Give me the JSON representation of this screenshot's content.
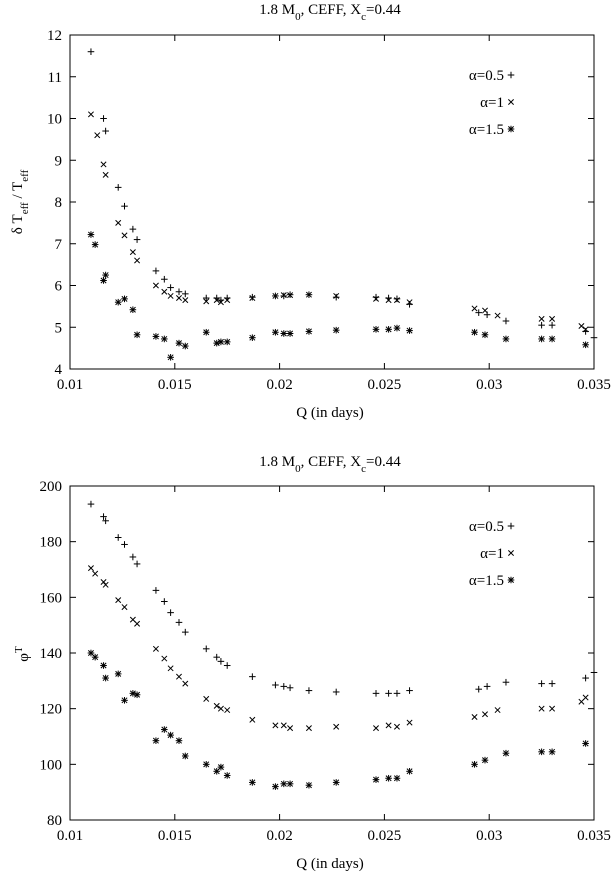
{
  "chart_data": [
    {
      "type": "scatter",
      "title": {
        "prefix": "1.8 M",
        "sub": "0",
        "suffix": ", CEFF, X",
        "sub2": "c",
        "tail": "=0.44"
      },
      "xlabel": "Q (in days)",
      "ylabel": {
        "a": "δ T",
        "sub_a": "eff",
        "b": " / T",
        "sub_b": "eff"
      },
      "xlim": [
        0.01,
        0.035
      ],
      "ylim": [
        4,
        12
      ],
      "xticks": [
        "0.01",
        "0.015",
        "0.02",
        "0.025",
        "0.03",
        "0.035"
      ],
      "yticks": [
        "4",
        "5",
        "6",
        "7",
        "8",
        "9",
        "10",
        "11",
        "12"
      ],
      "legend_position": "top-right",
      "series": [
        {
          "name": "α=0.5",
          "marker": "plus",
          "points": [
            [
              0.011,
              11.6
            ],
            [
              0.0116,
              10.0
            ],
            [
              0.0117,
              9.7
            ],
            [
              0.0123,
              8.35
            ],
            [
              0.0126,
              7.9
            ],
            [
              0.013,
              7.35
            ],
            [
              0.0132,
              7.1
            ],
            [
              0.0141,
              6.35
            ],
            [
              0.0145,
              6.15
            ],
            [
              0.0148,
              5.95
            ],
            [
              0.0152,
              5.85
            ],
            [
              0.0155,
              5.8
            ],
            [
              0.0165,
              5.7
            ],
            [
              0.017,
              5.7
            ],
            [
              0.0172,
              5.65
            ],
            [
              0.0175,
              5.7
            ],
            [
              0.0187,
              5.72
            ],
            [
              0.0198,
              5.75
            ],
            [
              0.0202,
              5.75
            ],
            [
              0.0205,
              5.78
            ],
            [
              0.0214,
              5.78
            ],
            [
              0.0227,
              5.72
            ],
            [
              0.0246,
              5.72
            ],
            [
              0.0252,
              5.7
            ],
            [
              0.0256,
              5.68
            ],
            [
              0.0262,
              5.55
            ],
            [
              0.0295,
              5.35
            ],
            [
              0.0299,
              5.3
            ],
            [
              0.0308,
              5.15
            ],
            [
              0.0325,
              5.05
            ],
            [
              0.033,
              5.05
            ],
            [
              0.0346,
              4.9
            ],
            [
              0.035,
              4.75
            ]
          ]
        },
        {
          "name": "α=1",
          "marker": "cross",
          "points": [
            [
              0.011,
              10.1
            ],
            [
              0.0113,
              9.6
            ],
            [
              0.0116,
              8.9
            ],
            [
              0.0117,
              8.65
            ],
            [
              0.0123,
              7.5
            ],
            [
              0.0126,
              7.2
            ],
            [
              0.013,
              6.8
            ],
            [
              0.0132,
              6.6
            ],
            [
              0.0141,
              6.0
            ],
            [
              0.0145,
              5.85
            ],
            [
              0.0148,
              5.75
            ],
            [
              0.0152,
              5.7
            ],
            [
              0.0155,
              5.65
            ],
            [
              0.0165,
              5.62
            ],
            [
              0.017,
              5.65
            ],
            [
              0.0172,
              5.6
            ],
            [
              0.0175,
              5.65
            ],
            [
              0.0187,
              5.7
            ],
            [
              0.0198,
              5.75
            ],
            [
              0.0202,
              5.77
            ],
            [
              0.0205,
              5.77
            ],
            [
              0.0214,
              5.78
            ],
            [
              0.0227,
              5.75
            ],
            [
              0.0246,
              5.68
            ],
            [
              0.0252,
              5.65
            ],
            [
              0.0256,
              5.65
            ],
            [
              0.0262,
              5.6
            ],
            [
              0.0293,
              5.45
            ],
            [
              0.0298,
              5.4
            ],
            [
              0.0304,
              5.28
            ],
            [
              0.0325,
              5.2
            ],
            [
              0.033,
              5.2
            ],
            [
              0.0344,
              5.03
            ],
            [
              0.0346,
              4.95
            ]
          ]
        },
        {
          "name": "α=1.5",
          "marker": "star",
          "points": [
            [
              0.011,
              7.22
            ],
            [
              0.0112,
              6.98
            ],
            [
              0.0116,
              6.12
            ],
            [
              0.0117,
              6.25
            ],
            [
              0.0123,
              5.6
            ],
            [
              0.0126,
              5.68
            ],
            [
              0.013,
              5.42
            ],
            [
              0.0132,
              4.82
            ],
            [
              0.0141,
              4.78
            ],
            [
              0.0145,
              4.72
            ],
            [
              0.0148,
              4.28
            ],
            [
              0.0152,
              4.62
            ],
            [
              0.0155,
              4.55
            ],
            [
              0.0165,
              4.88
            ],
            [
              0.017,
              4.62
            ],
            [
              0.0172,
              4.65
            ],
            [
              0.0175,
              4.65
            ],
            [
              0.0187,
              4.75
            ],
            [
              0.0198,
              4.88
            ],
            [
              0.0202,
              4.85
            ],
            [
              0.0205,
              4.85
            ],
            [
              0.0214,
              4.9
            ],
            [
              0.0227,
              4.93
            ],
            [
              0.0246,
              4.95
            ],
            [
              0.0252,
              4.95
            ],
            [
              0.0256,
              4.98
            ],
            [
              0.0262,
              4.92
            ],
            [
              0.0293,
              4.88
            ],
            [
              0.0298,
              4.82
            ],
            [
              0.0308,
              4.72
            ],
            [
              0.0325,
              4.72
            ],
            [
              0.033,
              4.72
            ],
            [
              0.0346,
              4.58
            ]
          ]
        }
      ]
    },
    {
      "type": "scatter",
      "title": {
        "prefix": "1.8 M",
        "sub": "0",
        "suffix": ", CEFF, X",
        "sub2": "c",
        "tail": "=0.44"
      },
      "xlabel": "Q (in days)",
      "ylabel": {
        "a": "φ",
        "sup": "T"
      },
      "xlim": [
        0.01,
        0.035
      ],
      "ylim": [
        80,
        200
      ],
      "xticks": [
        "0.01",
        "0.015",
        "0.02",
        "0.025",
        "0.03",
        "0.035"
      ],
      "yticks": [
        "80",
        "100",
        "120",
        "140",
        "160",
        "180",
        "200"
      ],
      "legend_position": "top-right",
      "series": [
        {
          "name": "α=0.5",
          "marker": "plus",
          "points": [
            [
              0.011,
              193.5
            ],
            [
              0.0116,
              189
            ],
            [
              0.0117,
              187.5
            ],
            [
              0.0123,
              181.5
            ],
            [
              0.0126,
              179
            ],
            [
              0.013,
              174.5
            ],
            [
              0.0132,
              172
            ],
            [
              0.0141,
              162.5
            ],
            [
              0.0145,
              158.5
            ],
            [
              0.0148,
              154.5
            ],
            [
              0.0152,
              151
            ],
            [
              0.0155,
              147.5
            ],
            [
              0.0165,
              141.5
            ],
            [
              0.017,
              138.5
            ],
            [
              0.0172,
              137
            ],
            [
              0.0175,
              135.5
            ],
            [
              0.0187,
              131.5
            ],
            [
              0.0198,
              128.5
            ],
            [
              0.0202,
              128
            ],
            [
              0.0205,
              127.5
            ],
            [
              0.0214,
              126.5
            ],
            [
              0.0227,
              126
            ],
            [
              0.0246,
              125.5
            ],
            [
              0.0252,
              125.5
            ],
            [
              0.0256,
              125.5
            ],
            [
              0.0262,
              126.5
            ],
            [
              0.0295,
              127
            ],
            [
              0.0299,
              128
            ],
            [
              0.0308,
              129.5
            ],
            [
              0.0325,
              129
            ],
            [
              0.033,
              129
            ],
            [
              0.0346,
              131
            ],
            [
              0.035,
              133
            ]
          ]
        },
        {
          "name": "α=1",
          "marker": "cross",
          "points": [
            [
              0.011,
              170.5
            ],
            [
              0.0112,
              168.5
            ],
            [
              0.0116,
              165.5
            ],
            [
              0.0117,
              164.5
            ],
            [
              0.0123,
              159
            ],
            [
              0.0126,
              156.5
            ],
            [
              0.013,
              152
            ],
            [
              0.0132,
              150.5
            ],
            [
              0.0141,
              141.5
            ],
            [
              0.0145,
              138
            ],
            [
              0.0148,
              134.5
            ],
            [
              0.0152,
              131.5
            ],
            [
              0.0155,
              129
            ],
            [
              0.0165,
              123.5
            ],
            [
              0.017,
              121
            ],
            [
              0.0172,
              120
            ],
            [
              0.0175,
              119.5
            ],
            [
              0.0187,
              116
            ],
            [
              0.0198,
              114
            ],
            [
              0.0202,
              114
            ],
            [
              0.0205,
              113
            ],
            [
              0.0214,
              113
            ],
            [
              0.0227,
              113.5
            ],
            [
              0.0246,
              113
            ],
            [
              0.0252,
              114
            ],
            [
              0.0256,
              113.5
            ],
            [
              0.0262,
              115
            ],
            [
              0.0293,
              117
            ],
            [
              0.0298,
              118
            ],
            [
              0.0304,
              119.5
            ],
            [
              0.0325,
              120
            ],
            [
              0.033,
              120
            ],
            [
              0.0344,
              122.5
            ],
            [
              0.0346,
              124
            ]
          ]
        },
        {
          "name": "α=1.5",
          "marker": "star",
          "points": [
            [
              0.011,
              140
            ],
            [
              0.0112,
              138.5
            ],
            [
              0.0116,
              135.5
            ],
            [
              0.0117,
              131
            ],
            [
              0.0123,
              132.5
            ],
            [
              0.0126,
              123
            ],
            [
              0.013,
              125.5
            ],
            [
              0.0132,
              125
            ],
            [
              0.0141,
              108.5
            ],
            [
              0.0145,
              112.5
            ],
            [
              0.0148,
              110.5
            ],
            [
              0.0152,
              108.5
            ],
            [
              0.0155,
              103
            ],
            [
              0.0165,
              100
            ],
            [
              0.017,
              97.5
            ],
            [
              0.0172,
              99
            ],
            [
              0.0175,
              96
            ],
            [
              0.0187,
              93.5
            ],
            [
              0.0198,
              92
            ],
            [
              0.0202,
              93
            ],
            [
              0.0205,
              93
            ],
            [
              0.0214,
              92.5
            ],
            [
              0.0227,
              93.5
            ],
            [
              0.0246,
              94.5
            ],
            [
              0.0252,
              95
            ],
            [
              0.0256,
              95
            ],
            [
              0.0262,
              97.5
            ],
            [
              0.0293,
              100
            ],
            [
              0.0298,
              101.5
            ],
            [
              0.0308,
              104
            ],
            [
              0.0325,
              104.5
            ],
            [
              0.033,
              104.5
            ],
            [
              0.0346,
              107.5
            ]
          ]
        }
      ]
    }
  ]
}
